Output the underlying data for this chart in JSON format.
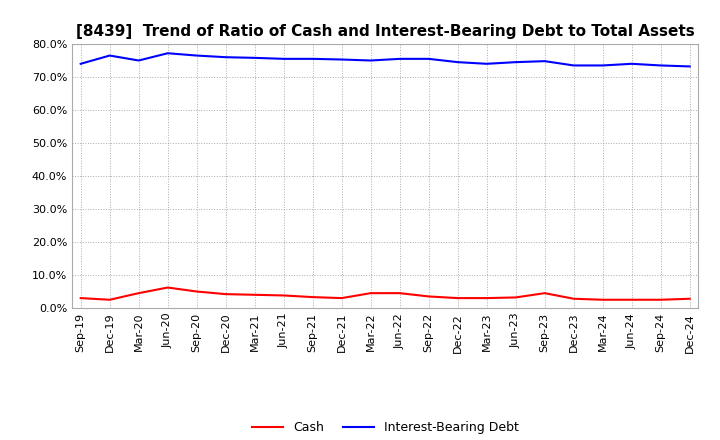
{
  "title": "[8439]  Trend of Ratio of Cash and Interest-Bearing Debt to Total Assets",
  "x_labels": [
    "Sep-19",
    "Dec-19",
    "Mar-20",
    "Jun-20",
    "Sep-20",
    "Dec-20",
    "Mar-21",
    "Jun-21",
    "Sep-21",
    "Dec-21",
    "Mar-22",
    "Jun-22",
    "Sep-22",
    "Dec-22",
    "Mar-23",
    "Jun-23",
    "Sep-23",
    "Dec-23",
    "Mar-24",
    "Jun-24",
    "Sep-24",
    "Dec-24"
  ],
  "cash": [
    3.0,
    2.5,
    4.5,
    6.2,
    5.0,
    4.2,
    4.0,
    3.8,
    3.3,
    3.0,
    4.5,
    4.5,
    3.5,
    3.0,
    3.0,
    3.2,
    4.5,
    2.8,
    2.5,
    2.5,
    2.5,
    2.8
  ],
  "interest_bearing_debt": [
    74.0,
    76.5,
    75.0,
    77.2,
    76.5,
    76.0,
    75.8,
    75.5,
    75.5,
    75.3,
    75.0,
    75.5,
    75.5,
    74.5,
    74.0,
    74.5,
    74.8,
    73.5,
    73.5,
    74.0,
    73.5,
    73.2
  ],
  "cash_color": "#FF0000",
  "debt_color": "#0000FF",
  "background_color": "#FFFFFF",
  "grid_color": "#888888",
  "ylim": [
    0,
    80
  ],
  "yticks": [
    0,
    10,
    20,
    30,
    40,
    50,
    60,
    70,
    80
  ],
  "legend_cash": "Cash",
  "legend_debt": "Interest-Bearing Debt",
  "title_fontsize": 11,
  "axis_fontsize": 8,
  "legend_fontsize": 9
}
